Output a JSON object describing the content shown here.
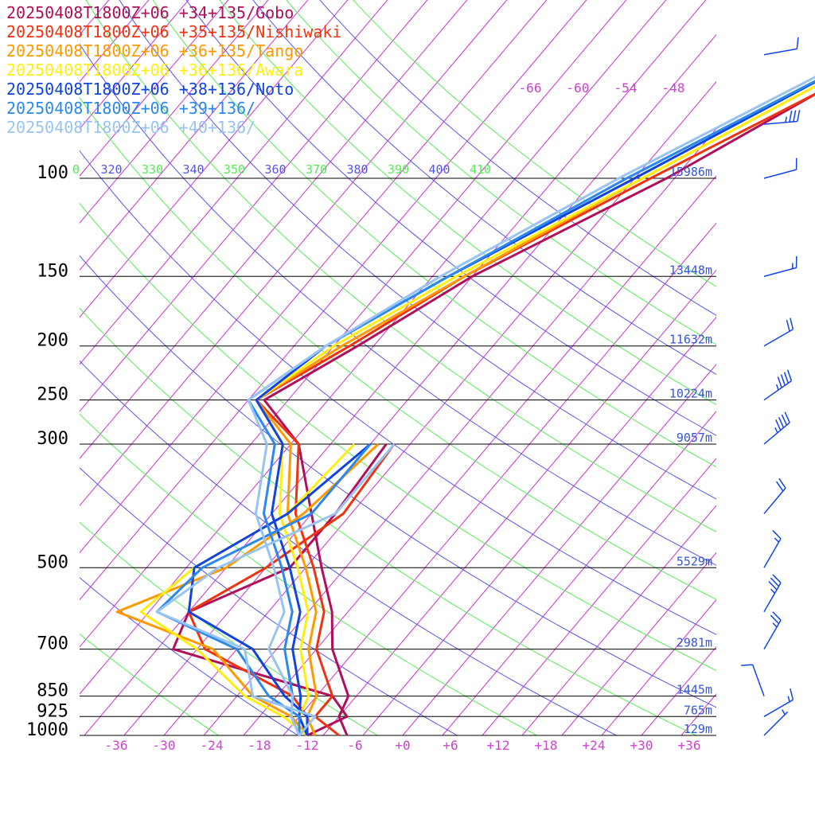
{
  "chart_data": {
    "type": "line",
    "title": "",
    "xlabel": "",
    "ylabel": "",
    "pressure_levels": [
      100,
      150,
      200,
      250,
      300,
      500,
      700,
      850,
      925,
      1000
    ],
    "pressure_labels": [
      "100",
      "150",
      "200",
      "250",
      "300",
      "500",
      "700",
      "850",
      "925",
      "1000"
    ],
    "height_labels": [
      "15986m",
      "13448m",
      "11632m",
      "10224m",
      "9057m",
      "5529m",
      "2981m",
      "1445m",
      "765m",
      "129m"
    ],
    "temperature_ticks": [
      -36,
      -30,
      -24,
      -18,
      -12,
      -6,
      0,
      6,
      12,
      18,
      24,
      30,
      36
    ],
    "temperature_tick_labels": [
      "-36",
      "-30",
      "-24",
      "-18",
      "-12",
      "-6",
      "+0",
      "+6",
      "+12",
      "+18",
      "+24",
      "+30",
      "+36"
    ],
    "upper_temperature_labels": [
      "-66",
      "-60",
      "-54",
      "-48"
    ],
    "theta_labels": [
      "0",
      "320",
      "330",
      "340",
      "350",
      "360",
      "370",
      "380",
      "390",
      "400",
      "410"
    ],
    "xlim": [
      -40,
      40
    ],
    "ylim": [
      1000,
      100
    ],
    "grid": true,
    "legend": "top-left",
    "series": [
      {
        "name": "20250408T1800Z+06 +34+135/Gobo",
        "color": "#b0105a",
        "temperature": [
          [
            40,
            -1
          ],
          [
            60,
            -11
          ],
          [
            70,
            -16
          ],
          [
            100,
            -26
          ],
          [
            150,
            -40
          ],
          [
            200,
            -47
          ],
          [
            250,
            -53
          ],
          [
            300,
            -44
          ],
          [
            400,
            -35
          ],
          [
            500,
            -28
          ],
          [
            600,
            -22
          ],
          [
            700,
            -18
          ],
          [
            850,
            -11
          ],
          [
            925,
            -10
          ],
          [
            1000,
            -7
          ]
        ],
        "dewpoint": [
          [
            300,
            -33
          ],
          [
            400,
            -32
          ],
          [
            500,
            -32
          ],
          [
            600,
            -40
          ],
          [
            700,
            -38
          ],
          [
            850,
            -13
          ],
          [
            925,
            -9
          ],
          [
            1000,
            -12
          ]
        ]
      },
      {
        "name": "20250408T1800Z+06 +35+135/Nishiwaki",
        "color": "#ee3311",
        "temperature": [
          [
            40,
            -2
          ],
          [
            60,
            -12
          ],
          [
            70,
            -16
          ],
          [
            100,
            -28
          ],
          [
            150,
            -41
          ],
          [
            200,
            -48
          ],
          [
            250,
            -54
          ],
          [
            300,
            -44
          ],
          [
            400,
            -37
          ],
          [
            500,
            -29
          ],
          [
            600,
            -23
          ],
          [
            700,
            -20
          ],
          [
            850,
            -13
          ],
          [
            925,
            -13
          ],
          [
            1000,
            -8
          ]
        ],
        "dewpoint": [
          [
            300,
            -32
          ],
          [
            400,
            -31
          ],
          [
            500,
            -35
          ],
          [
            600,
            -40
          ],
          [
            700,
            -34
          ],
          [
            850,
            -18
          ],
          [
            925,
            -14
          ],
          [
            1000,
            -12
          ]
        ]
      },
      {
        "name": "20250408T1800Z+06 +36+135/Tango",
        "color": "#ff9900",
        "temperature": [
          [
            40,
            -3
          ],
          [
            60,
            -13
          ],
          [
            100,
            -29
          ],
          [
            150,
            -41
          ],
          [
            200,
            -49
          ],
          [
            250,
            -54
          ],
          [
            300,
            -45
          ],
          [
            400,
            -38
          ],
          [
            500,
            -30
          ],
          [
            600,
            -24
          ],
          [
            700,
            -21
          ],
          [
            850,
            -15
          ],
          [
            925,
            -14
          ],
          [
            1000,
            -11
          ]
        ],
        "dewpoint": [
          [
            300,
            -34
          ],
          [
            400,
            -36
          ],
          [
            500,
            -40
          ],
          [
            600,
            -49
          ],
          [
            700,
            -33
          ],
          [
            850,
            -23
          ],
          [
            925,
            -16
          ],
          [
            1000,
            -12
          ]
        ]
      },
      {
        "name": "20250408T1800Z+06 +36+136/Awara",
        "color": "#ffee11",
        "temperature": [
          [
            40,
            -3
          ],
          [
            60,
            -13
          ],
          [
            100,
            -29
          ],
          [
            150,
            -42
          ],
          [
            200,
            -50
          ],
          [
            250,
            -54
          ],
          [
            300,
            -46
          ],
          [
            400,
            -39
          ],
          [
            500,
            -31
          ],
          [
            600,
            -25
          ],
          [
            700,
            -22
          ],
          [
            850,
            -16
          ],
          [
            925,
            -15
          ],
          [
            1000,
            -12
          ]
        ],
        "dewpoint": [
          [
            300,
            -37
          ],
          [
            400,
            -38
          ],
          [
            500,
            -44
          ],
          [
            600,
            -46
          ],
          [
            700,
            -35
          ],
          [
            850,
            -24
          ],
          [
            925,
            -17
          ],
          [
            1000,
            -12
          ]
        ]
      },
      {
        "name": "20250408T1800Z+06 +38+136/Noto",
        "color": "#1144dd",
        "temperature": [
          [
            40,
            -4
          ],
          [
            60,
            -14
          ],
          [
            100,
            -30
          ],
          [
            150,
            -43
          ],
          [
            200,
            -51
          ],
          [
            250,
            -54
          ],
          [
            300,
            -46
          ],
          [
            400,
            -40
          ],
          [
            500,
            -32
          ],
          [
            600,
            -26
          ],
          [
            700,
            -23
          ],
          [
            850,
            -17
          ],
          [
            925,
            -15
          ],
          [
            1000,
            -12
          ]
        ],
        "dewpoint": [
          [
            300,
            -35
          ],
          [
            400,
            -38
          ],
          [
            500,
            -44
          ],
          [
            600,
            -40
          ],
          [
            700,
            -28
          ],
          [
            850,
            -19
          ],
          [
            925,
            -14
          ],
          [
            1000,
            -12
          ]
        ]
      },
      {
        "name": "20250408T1800Z+06 +39+136/",
        "color": "#2a88ee",
        "temperature": [
          [
            40,
            -4
          ],
          [
            60,
            -14
          ],
          [
            100,
            -31
          ],
          [
            150,
            -43
          ],
          [
            200,
            -51
          ],
          [
            250,
            -55
          ],
          [
            300,
            -47
          ],
          [
            400,
            -41
          ],
          [
            500,
            -33
          ],
          [
            600,
            -27
          ],
          [
            700,
            -24
          ],
          [
            850,
            -18
          ],
          [
            925,
            -16
          ],
          [
            1000,
            -13
          ]
        ],
        "dewpoint": [
          [
            300,
            -35
          ],
          [
            400,
            -35
          ],
          [
            500,
            -43
          ],
          [
            600,
            -44
          ],
          [
            700,
            -30
          ],
          [
            850,
            -21
          ],
          [
            925,
            -15
          ],
          [
            1000,
            -13
          ]
        ]
      },
      {
        "name": "20250408T1800Z+06 +40+136/",
        "color": "#99c4f2",
        "temperature": [
          [
            40,
            -5
          ],
          [
            60,
            -15
          ],
          [
            100,
            -32
          ],
          [
            150,
            -44
          ],
          [
            200,
            -51
          ],
          [
            250,
            -55
          ],
          [
            300,
            -48
          ],
          [
            400,
            -42
          ],
          [
            500,
            -34
          ],
          [
            600,
            -28
          ],
          [
            700,
            -26
          ],
          [
            850,
            -18
          ],
          [
            925,
            -16
          ],
          [
            1000,
            -13
          ]
        ],
        "dewpoint": [
          [
            300,
            -32
          ],
          [
            400,
            -32
          ],
          [
            500,
            -41
          ],
          [
            600,
            -44
          ],
          [
            700,
            -29
          ],
          [
            850,
            -23
          ],
          [
            925,
            -13
          ],
          [
            1000,
            -13
          ]
        ]
      }
    ],
    "wind_barbs": [
      {
        "pressure": 60,
        "dir": 280,
        "speed": 10
      },
      {
        "pressure": 80,
        "dir": 275,
        "speed": 35
      },
      {
        "pressure": 100,
        "dir": 285,
        "speed": 10
      },
      {
        "pressure": 150,
        "dir": 285,
        "speed": 15
      },
      {
        "pressure": 200,
        "dir": 300,
        "speed": 20
      },
      {
        "pressure": 250,
        "dir": 305,
        "speed": 45
      },
      {
        "pressure": 300,
        "dir": 310,
        "speed": 45
      },
      {
        "pressure": 400,
        "dir": 320,
        "speed": 20
      },
      {
        "pressure": 500,
        "dir": 330,
        "speed": 15
      },
      {
        "pressure": 600,
        "dir": 330,
        "speed": 35
      },
      {
        "pressure": 700,
        "dir": 330,
        "speed": 25
      },
      {
        "pressure": 850,
        "dir": 20,
        "speed": 10
      },
      {
        "pressure": 925,
        "dir": 300,
        "speed": 15
      },
      {
        "pressure": 1000,
        "dir": 315,
        "speed": 5
      }
    ]
  }
}
